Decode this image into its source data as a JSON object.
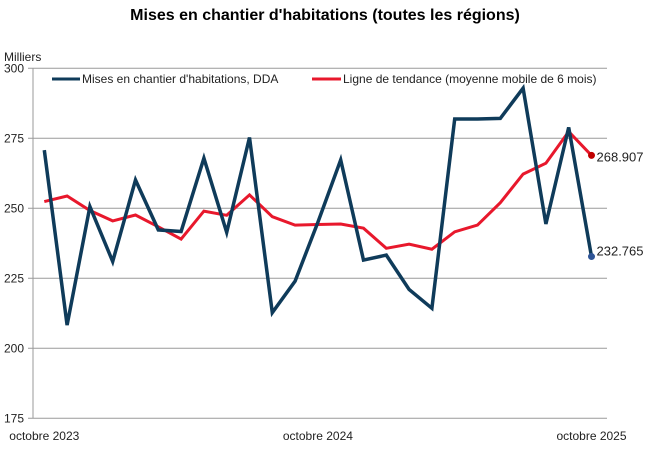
{
  "chart_data": {
    "type": "line",
    "title": "Mises en chantier d'habitations (toutes les régions)",
    "ylabel": "Milliers",
    "xlabel": "",
    "ylim": [
      175,
      300
    ],
    "yticks": [
      175,
      200,
      225,
      250,
      275,
      300
    ],
    "grid": true,
    "legend_position": "top",
    "x": [
      "2023-10",
      "2023-11",
      "2023-12",
      "2024-01",
      "2024-02",
      "2024-03",
      "2024-04",
      "2024-05",
      "2024-06",
      "2024-07",
      "2024-08",
      "2024-09",
      "2024-10",
      "2024-11",
      "2024-12",
      "2025-01",
      "2025-02",
      "2025-03",
      "2025-04",
      "2025-05",
      "2025-06",
      "2025-07",
      "2025-08",
      "2025-09",
      "2025-10"
    ],
    "xtick_labels": [
      {
        "index": 0,
        "label": "octobre 2023"
      },
      {
        "index": 12,
        "label": "octobre 2024"
      },
      {
        "index": 24,
        "label": "octobre 2025"
      }
    ],
    "series": [
      {
        "name": "Mises en chantier d'habitations, DDA",
        "color": "#0f3b5a",
        "values": [
          270.8,
          208.3,
          250.6,
          231.0,
          260.1,
          242.3,
          241.7,
          267.9,
          241.4,
          275.3,
          212.7,
          224.0,
          245.0,
          267.3,
          231.5,
          233.3,
          221.0,
          214.3,
          281.9,
          281.9,
          282.1,
          292.9,
          244.4,
          278.9,
          232.765
        ],
        "last_label": "232.765"
      },
      {
        "name": "Ligne de tendance (moyenne mobile de 6 mois)",
        "color": "#e8182c",
        "values": [
          252.4,
          254.4,
          249.2,
          245.5,
          247.6,
          243.4,
          239.0,
          249.0,
          247.5,
          254.8,
          247.0,
          244.0,
          244.2,
          244.4,
          242.9,
          235.7,
          237.2,
          235.4,
          241.6,
          244.0,
          252.0,
          262.2,
          266.1,
          277.4,
          268.907
        ],
        "last_label": "268.907"
      }
    ]
  }
}
